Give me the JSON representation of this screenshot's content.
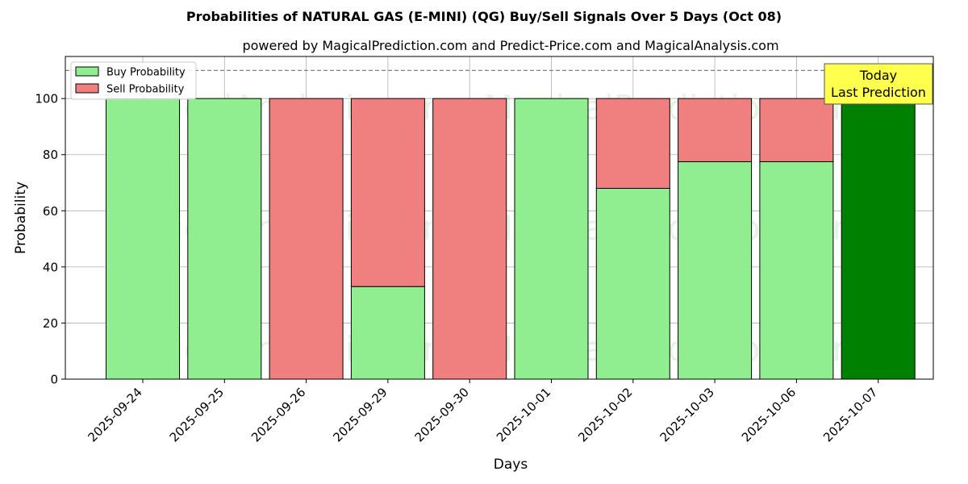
{
  "chart_data": {
    "type": "bar",
    "stacked": true,
    "title": "Probabilities of NATURAL GAS (E-MINI) (QG) Buy/Sell Signals Over 5 Days (Oct 08)",
    "subtitle": "powered by MagicalPrediction.com and Predict-Price.com and MagicalAnalysis.com",
    "xlabel": "Days",
    "ylabel": "Probability",
    "ylim": [
      0,
      115
    ],
    "yticks": [
      0,
      20,
      40,
      60,
      80,
      100
    ],
    "grid": true,
    "legend_placement": "top-left",
    "reference_line": 110,
    "categories": [
      "2025-09-24",
      "2025-09-25",
      "2025-09-26",
      "2025-09-29",
      "2025-09-30",
      "2025-10-01",
      "2025-10-02",
      "2025-10-03",
      "2025-10-06",
      "2025-10-07"
    ],
    "series": [
      {
        "name": "Buy Probability",
        "color": "#90ee90",
        "values": [
          100,
          100,
          0,
          33,
          0,
          100,
          68,
          77.5,
          77.5,
          100
        ]
      },
      {
        "name": "Sell Probability",
        "color": "#f08080",
        "values": [
          0,
          0,
          100,
          67,
          100,
          0,
          32,
          22.5,
          22.5,
          0
        ]
      }
    ],
    "highlight": {
      "index": 9,
      "color": "#008000"
    },
    "annotation": {
      "lines": [
        "Today",
        "Last Prediction"
      ],
      "background": "#ffff4d"
    },
    "watermarks": [
      "MagicalAnalysis.com",
      "MagicalPrediction.com"
    ]
  }
}
